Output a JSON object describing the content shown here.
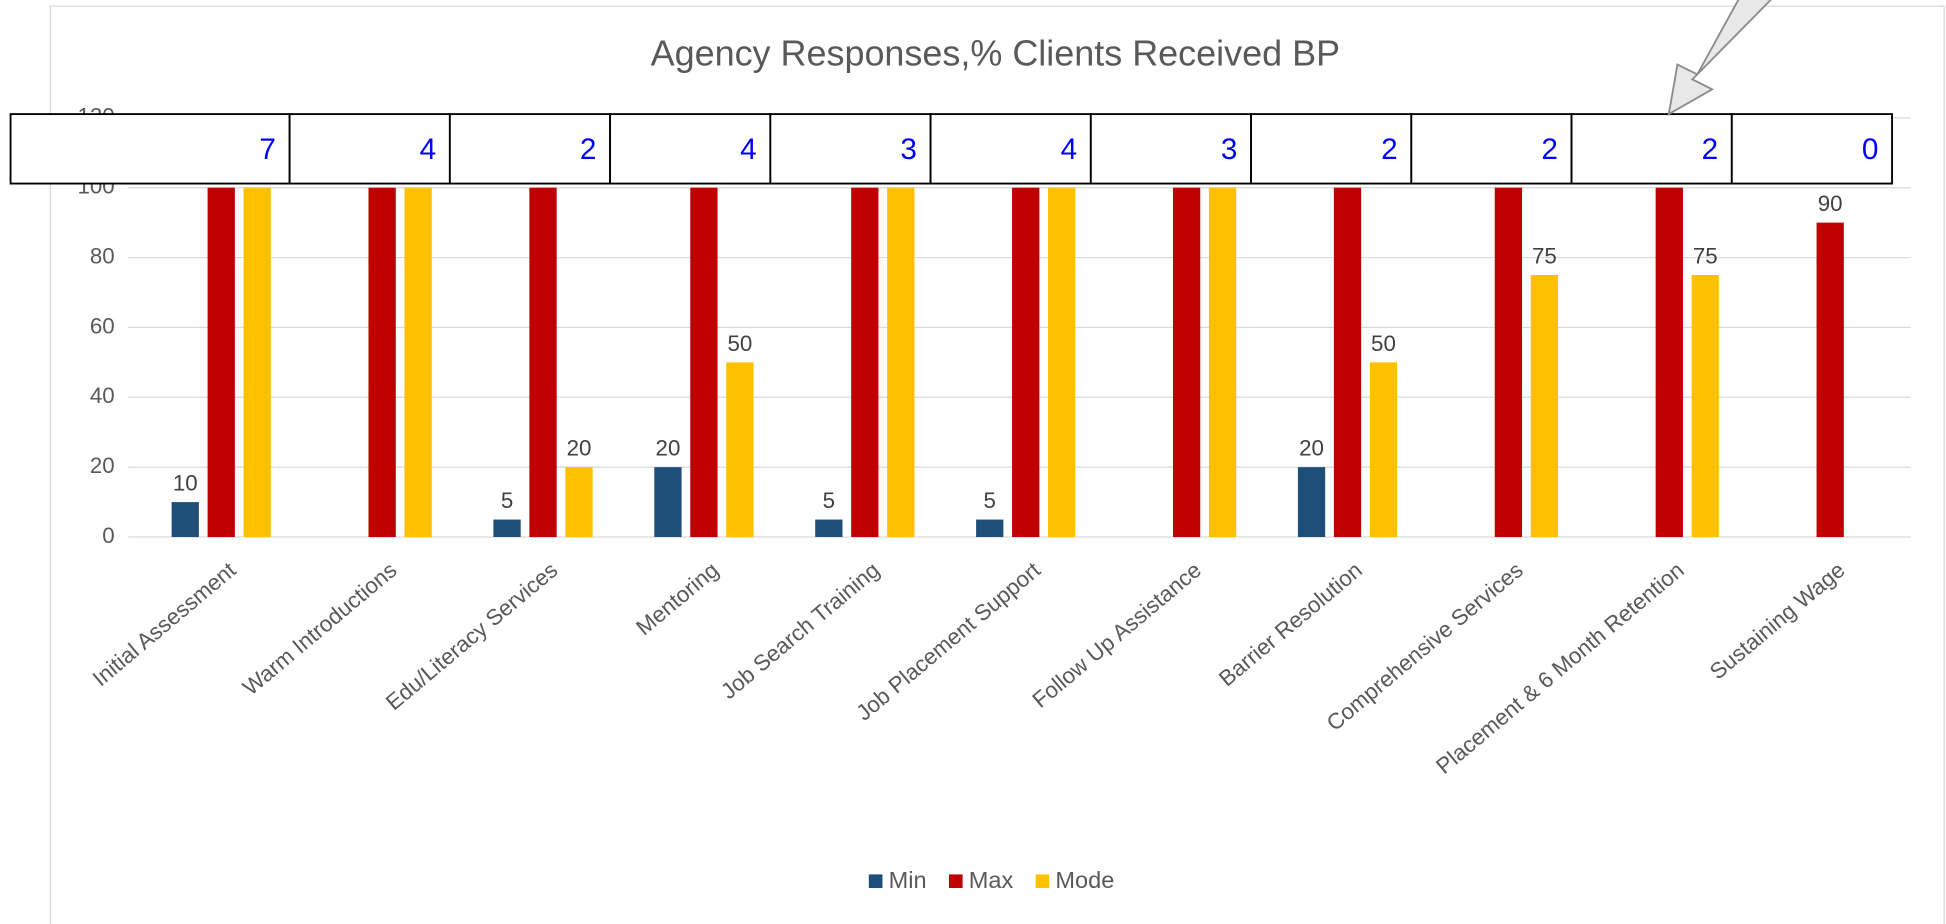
{
  "chart_data": {
    "type": "bar",
    "title": "Agency Responses,% Clients Received BP",
    "categories": [
      "Initial Assessment",
      "Warm Introductions",
      "Edu/Literacy Services",
      "Mentoring",
      "Job Search Training",
      "Job Placement Support",
      "Follow Up Assistance",
      "Barrier Resolution",
      "Comprehensive Services",
      "Placement & 6 Month Retention",
      "Sustaining Wage"
    ],
    "series": [
      {
        "name": "Min",
        "color": "#1f4e79",
        "values": [
          10,
          null,
          5,
          20,
          5,
          5,
          null,
          20,
          null,
          null,
          null
        ]
      },
      {
        "name": "Max",
        "color": "#c00000",
        "values": [
          100,
          100,
          100,
          100,
          100,
          100,
          100,
          100,
          100,
          100,
          90
        ]
      },
      {
        "name": "Mode",
        "color": "#ffc000",
        "values": [
          100,
          100,
          20,
          50,
          100,
          100,
          100,
          50,
          75,
          75,
          null
        ]
      }
    ],
    "ylim": [
      0,
      120
    ],
    "yticks": [
      0,
      20,
      40,
      60,
      80,
      100,
      120
    ],
    "grid": true,
    "legend": "bottom"
  },
  "response_counts": [
    7,
    4,
    2,
    4,
    3,
    4,
    3,
    2,
    2,
    2,
    0
  ]
}
